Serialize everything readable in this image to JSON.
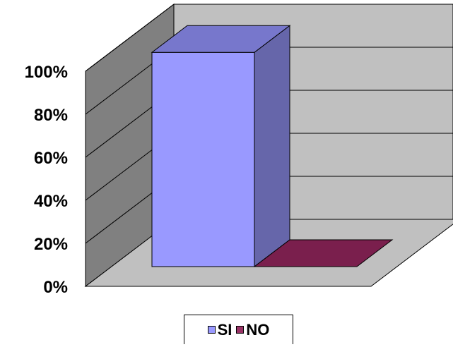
{
  "chart_data": {
    "type": "bar",
    "categories": [
      ""
    ],
    "series": [
      {
        "name": "SI",
        "values": [
          100
        ],
        "color": "#9999ff"
      },
      {
        "name": "NO",
        "values": [
          0
        ],
        "color": "#993366"
      }
    ],
    "yticks": [
      "0%",
      "20%",
      "40%",
      "60%",
      "80%",
      "100%"
    ],
    "ylim": [
      0,
      100
    ],
    "grid": true,
    "legend": "bottom",
    "three_d": true
  }
}
